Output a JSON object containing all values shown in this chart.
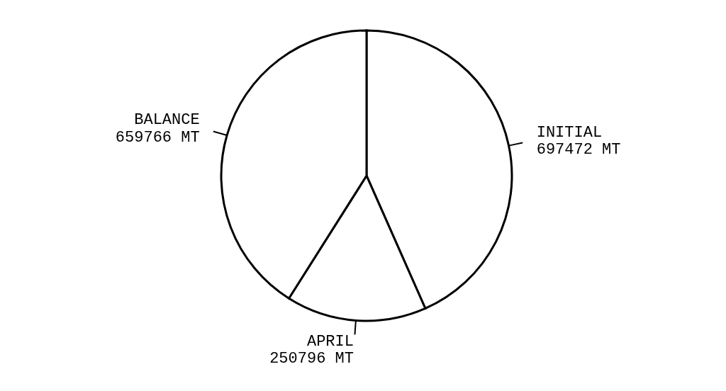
{
  "chart_data": {
    "type": "pie",
    "categories": [
      "INITIAL",
      "APRIL",
      "BALANCE"
    ],
    "values": [
      697472,
      250796,
      659766
    ],
    "value_labels": [
      "697472 MT",
      "250796 MT",
      "659766 MT"
    ],
    "colors": [
      "#ffffff",
      "#ffffff",
      "#ffffff"
    ]
  }
}
